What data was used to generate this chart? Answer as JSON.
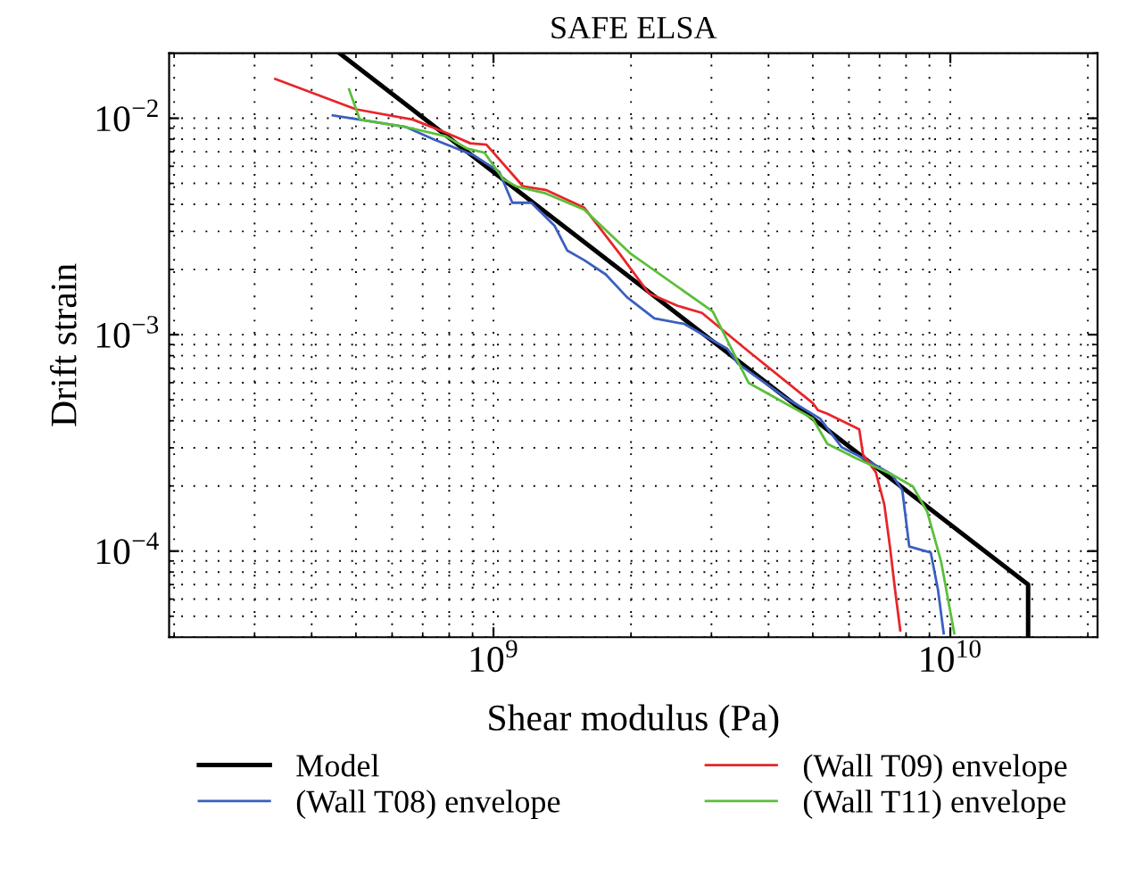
{
  "chart_data": {
    "type": "line",
    "title": "SAFE ELSA",
    "xlabel": "Shear modulus (Pa)",
    "ylabel": "Drift strain",
    "log": "xy",
    "grid": true,
    "legend": "bottom",
    "marker": "none",
    "line_style": "solid",
    "xlim": [
      195000000.0,
      21000000000.0
    ],
    "ylim": [
      4e-05,
      0.02
    ],
    "xticks": [
      {
        "value": 1000000000.0,
        "label": "10$^{9}$"
      },
      {
        "value": 10000000000.0,
        "label": "10$^{10}$"
      }
    ],
    "yticks": [
      {
        "value": 0.0001,
        "label": "10$^{−4}$"
      },
      {
        "value": 0.001,
        "label": "10$^{−3}$"
      },
      {
        "value": 0.01,
        "label": "10$^{−2}$"
      }
    ],
    "series": [
      {
        "name": "Model",
        "color": "#000000",
        "x": [
          460000000.0,
          14800000000.0,
          14800000000.0
        ],
        "values": [
          0.02,
          7e-05,
          4e-05
        ]
      },
      {
        "name": "(Wall T08) envelope",
        "color": "#3b5fc0",
        "x": [
          445000000.0,
          510000000.0,
          644000000.0,
          744000000.0,
          906000000.0,
          1030000000.0,
          1100000000.0,
          1210000000.0,
          1360000000.0,
          1450000000.0,
          1580000000.0,
          1760000000.0,
          1960000000.0,
          2250000000.0,
          2620000000.0,
          3250000000.0,
          3430000000.0,
          4340000000.0,
          5190000000.0,
          5780000000.0,
          6440000000.0,
          7440000000.0,
          7850000000.0,
          8130000000.0,
          9060000000.0,
          9400000000.0,
          9670000000.0
        ],
        "values": [
          0.0103,
          0.00985,
          0.0091,
          0.00795,
          0.00673,
          0.00565,
          0.00407,
          0.00407,
          0.00319,
          0.00245,
          0.00221,
          0.0019,
          0.00149,
          0.00119,
          0.00112,
          0.00086,
          0.000734,
          0.000514,
          0.000409,
          0.000302,
          0.000269,
          0.000226,
          0.000191,
          0.000105,
          9.85e-05,
          6.6e-05,
          4.17e-05
        ]
      },
      {
        "name": "(Wall T09) envelope",
        "color": "#e8252a",
        "x": [
          333000000.0,
          500000000.0,
          667000000.0,
          785000000.0,
          890000000.0,
          965000000.0,
          1160000000.0,
          1300000000.0,
          1580000000.0,
          1890000000.0,
          2190000000.0,
          2530000000.0,
          2860000000.0,
          3560000000.0,
          5000000000.0,
          5130000000.0,
          5380000000.0,
          6320000000.0,
          6440000000.0,
          6870000000.0,
          7170000000.0,
          7380000000.0,
          7570000000.0,
          7770000000.0
        ],
        "values": [
          0.0152,
          0.011,
          0.00985,
          0.0086,
          0.00766,
          0.00755,
          0.00485,
          0.00467,
          0.00386,
          0.00236,
          0.00155,
          0.00136,
          0.00126,
          0.00086,
          0.000483,
          0.000448,
          0.000431,
          0.000365,
          0.000279,
          0.000231,
          0.000164,
          0.000104,
          6.6e-05,
          4.3e-05
        ]
      },
      {
        "name": "(Wall T11) envelope",
        "color": "#5bbf3a",
        "x": [
          483000000.0,
          510000000.0,
          644000000.0,
          785000000.0,
          874000000.0,
          955000000.0,
          1050000000.0,
          1120000000.0,
          1300000000.0,
          1580000000.0,
          2000000000.0,
          3020000000.0,
          3620000000.0,
          5000000000.0,
          5380000000.0,
          6210000000.0,
          7440000000.0,
          8280000000.0,
          8900000000.0,
          9550000000.0,
          10200000000.0
        ],
        "values": [
          0.0136,
          0.00985,
          0.0091,
          0.00827,
          0.00726,
          0.00694,
          0.00524,
          0.00485,
          0.0045,
          0.00378,
          0.00236,
          0.00128,
          0.000598,
          0.000409,
          0.000313,
          0.000269,
          0.000226,
          0.000199,
          0.000152,
          8.9e-05,
          4.17e-05
        ]
      }
    ]
  }
}
